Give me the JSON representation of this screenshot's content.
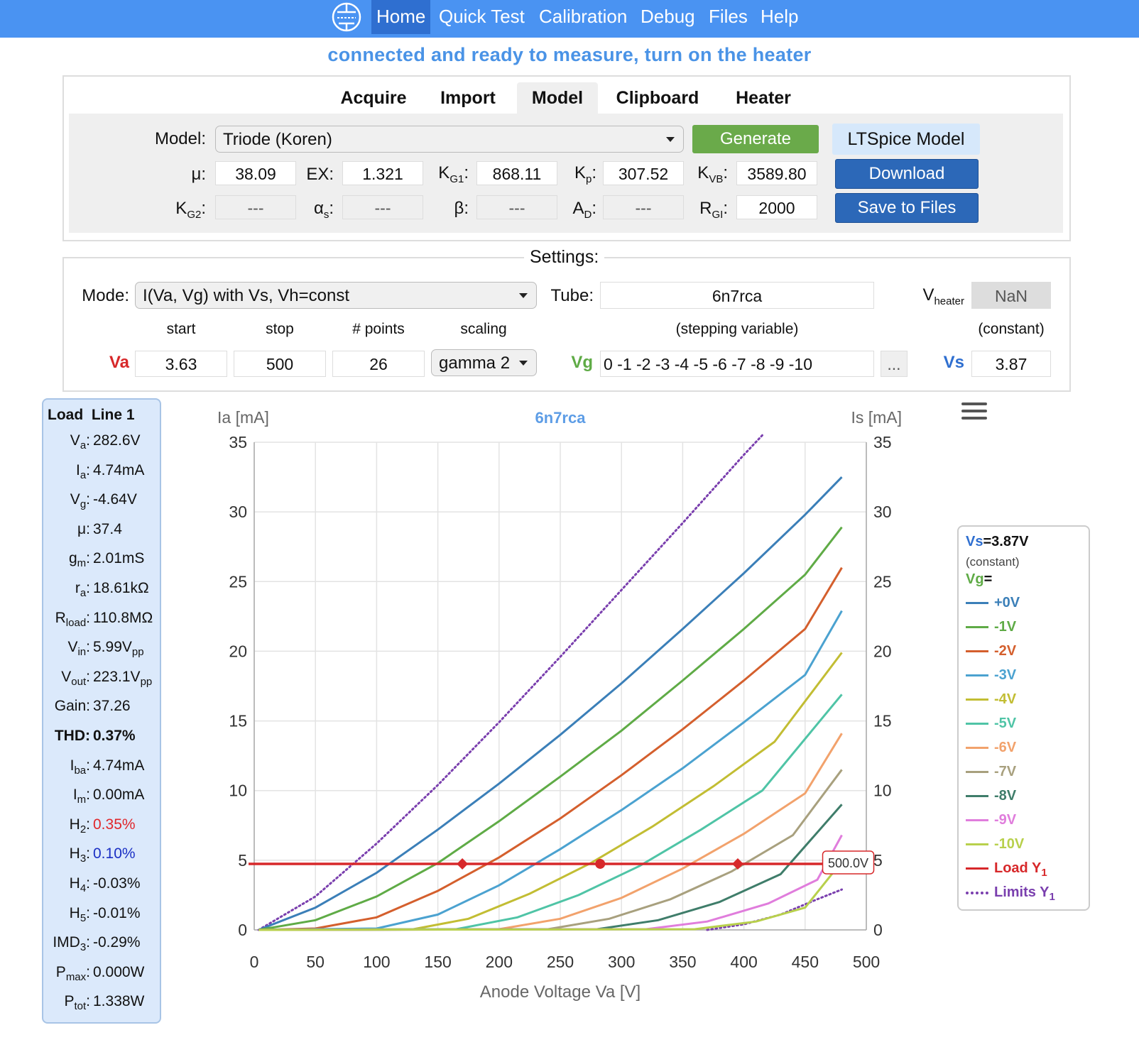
{
  "nav": {
    "items": [
      {
        "label": "Home",
        "active": true
      },
      {
        "label": "Quick Test"
      },
      {
        "label": "Calibration"
      },
      {
        "label": "Debug"
      },
      {
        "label": "Files"
      },
      {
        "label": "Help"
      }
    ]
  },
  "status": "connected and ready to measure, turn on the heater",
  "tabs": [
    "Acquire",
    "Import",
    "Model",
    "Clipboard",
    "Heater"
  ],
  "model": {
    "label": "Model:",
    "selected": "Triode (Koren)",
    "generate": "Generate",
    "ltspice": "LTSpice Model",
    "download": "Download",
    "save": "Save to Files",
    "mu": "38.09",
    "ex": "1.321",
    "kg1": "868.11",
    "kp": "307.52",
    "kvb": "3589.80",
    "kg2": "---",
    "alpha_s": "---",
    "beta": "---",
    "ad": "---",
    "rgi": "2000"
  },
  "settings": {
    "title": "Settings:",
    "mode_label": "Mode:",
    "mode": "I(Va, Vg) with Vs, Vh=const",
    "tube_label": "Tube:",
    "tube": "6n7rca",
    "vheater": "NaN",
    "h_start": "start",
    "h_stop": "stop",
    "h_points": "# points",
    "h_scaling": "scaling",
    "h_stepping": "(stepping variable)",
    "h_constant": "(constant)",
    "va_label": "Va",
    "va_start": "3.63",
    "va_stop": "500",
    "points": "26",
    "scaling": "gamma 2",
    "vg_label": "Vg",
    "vg_values": "0 -1 -2 -3 -4 -5 -6 -7 -8 -9 -10",
    "more": "...",
    "vs_label": "Vs",
    "vs_value": "3.87"
  },
  "loadline": {
    "title": "Load  Line 1",
    "rows": [
      {
        "k": "V",
        "s": "a",
        "v": "282.6V"
      },
      {
        "k": "I",
        "s": "a",
        "v": "4.74mA"
      },
      {
        "k": "V",
        "s": "g",
        "v": "-4.64V"
      },
      {
        "k": "μ",
        "s": "",
        "v": "37.4"
      },
      {
        "k": "g",
        "s": "m",
        "v": "2.01mS"
      },
      {
        "k": "r",
        "s": "a",
        "v": "18.61kΩ"
      },
      {
        "k": "R",
        "s": "load",
        "v": "110.8MΩ"
      },
      {
        "k": "V",
        "s": "in",
        "v": "5.99V",
        "vs": "pp"
      },
      {
        "k": "V",
        "s": "out",
        "v": "223.1V",
        "vs": "pp"
      },
      {
        "k": "Gain",
        "s": "",
        "v": "37.26"
      },
      {
        "k": "THD",
        "s": "",
        "v": "0.37%",
        "bold": true
      },
      {
        "k": "I",
        "s": "ba",
        "v": "4.74mA"
      },
      {
        "k": "I",
        "s": "m",
        "v": "0.00mA"
      },
      {
        "k": "H",
        "s": "2",
        "v": "0.35%",
        "color": "#e0262b"
      },
      {
        "k": "H",
        "s": "3",
        "v": "0.10%",
        "color": "#1a2fc4"
      },
      {
        "k": "H",
        "s": "4",
        "v": "-0.03%"
      },
      {
        "k": "H",
        "s": "5",
        "v": "-0.01%"
      },
      {
        "k": "IMD",
        "s": "3",
        "v": "-0.29%"
      },
      {
        "k": "P",
        "s": "max",
        "v": "0.000W"
      },
      {
        "k": "P",
        "s": "tot",
        "v": "1.338W"
      }
    ]
  },
  "chart_data": {
    "type": "line",
    "title": "6n7rca",
    "xlabel": "Anode Voltage Va [V]",
    "ylabel": "Ia [mA]",
    "y2label": "Is [mA]",
    "xlim": [
      0,
      500
    ],
    "ylim": [
      0,
      35
    ],
    "xticks": [
      0,
      50,
      100,
      150,
      200,
      250,
      300,
      350,
      400,
      450,
      500
    ],
    "yticks": [
      0,
      5,
      10,
      15,
      20,
      25,
      30,
      35
    ],
    "grid": true,
    "legend_position": "right",
    "series": [
      {
        "name": "+0V",
        "color": "#3b7fb8",
        "points": [
          [
            3.6,
            0
          ],
          [
            50,
            1.6
          ],
          [
            100,
            4.1
          ],
          [
            150,
            7.2
          ],
          [
            200,
            10.5
          ],
          [
            250,
            14.0
          ],
          [
            300,
            17.7
          ],
          [
            350,
            21.6
          ],
          [
            400,
            25.6
          ],
          [
            450,
            29.8
          ],
          [
            480,
            32.5
          ]
        ]
      },
      {
        "name": "-1V",
        "color": "#5fab46",
        "points": [
          [
            3.6,
            0
          ],
          [
            50,
            0.7
          ],
          [
            100,
            2.4
          ],
          [
            150,
            4.8
          ],
          [
            200,
            7.8
          ],
          [
            250,
            11.0
          ],
          [
            300,
            14.3
          ],
          [
            350,
            17.9
          ],
          [
            400,
            21.6
          ],
          [
            450,
            25.5
          ],
          [
            480,
            28.9
          ]
        ]
      },
      {
        "name": "-2V",
        "color": "#d45f2d",
        "points": [
          [
            3.6,
            0
          ],
          [
            50,
            0.1
          ],
          [
            100,
            0.9
          ],
          [
            150,
            2.8
          ],
          [
            200,
            5.2
          ],
          [
            250,
            8.0
          ],
          [
            300,
            11.1
          ],
          [
            350,
            14.4
          ],
          [
            400,
            17.9
          ],
          [
            450,
            21.6
          ],
          [
            480,
            26.0
          ]
        ]
      },
      {
        "name": "-3V",
        "color": "#4ba2d0",
        "points": [
          [
            3.6,
            0
          ],
          [
            100,
            0.1
          ],
          [
            150,
            1.1
          ],
          [
            200,
            3.2
          ],
          [
            250,
            5.8
          ],
          [
            300,
            8.6
          ],
          [
            350,
            11.6
          ],
          [
            400,
            14.9
          ],
          [
            450,
            18.3
          ],
          [
            480,
            22.9
          ]
        ]
      },
      {
        "name": "-4V",
        "color": "#c2bd33",
        "points": [
          [
            3.6,
            0
          ],
          [
            130,
            0.05
          ],
          [
            175,
            0.8
          ],
          [
            225,
            2.6
          ],
          [
            275,
            4.8
          ],
          [
            325,
            7.4
          ],
          [
            375,
            10.3
          ],
          [
            425,
            13.5
          ],
          [
            480,
            19.9
          ]
        ]
      },
      {
        "name": "-5V",
        "color": "#4fc4a6",
        "points": [
          [
            3.6,
            0
          ],
          [
            165,
            0.05
          ],
          [
            215,
            0.9
          ],
          [
            265,
            2.5
          ],
          [
            315,
            4.6
          ],
          [
            365,
            7.2
          ],
          [
            415,
            10.0
          ],
          [
            480,
            16.9
          ]
        ]
      },
      {
        "name": "-6V",
        "color": "#f2a26c",
        "points": [
          [
            3.6,
            0
          ],
          [
            200,
            0.05
          ],
          [
            250,
            0.8
          ],
          [
            300,
            2.3
          ],
          [
            350,
            4.4
          ],
          [
            400,
            6.9
          ],
          [
            450,
            9.8
          ],
          [
            480,
            14.1
          ]
        ]
      },
      {
        "name": "-7V",
        "color": "#a8a07e",
        "points": [
          [
            3.6,
            0
          ],
          [
            240,
            0.05
          ],
          [
            290,
            0.8
          ],
          [
            340,
            2.2
          ],
          [
            390,
            4.2
          ],
          [
            440,
            6.8
          ],
          [
            480,
            11.5
          ]
        ]
      },
      {
        "name": "-8V",
        "color": "#3f7d6a",
        "points": [
          [
            3.6,
            0
          ],
          [
            280,
            0.05
          ],
          [
            330,
            0.7
          ],
          [
            380,
            2.0
          ],
          [
            430,
            4.0
          ],
          [
            480,
            9.0
          ]
        ]
      },
      {
        "name": "-9V",
        "color": "#e07ddc",
        "points": [
          [
            3.6,
            0
          ],
          [
            320,
            0.05
          ],
          [
            370,
            0.6
          ],
          [
            420,
            1.9
          ],
          [
            460,
            3.6
          ],
          [
            480,
            6.8
          ]
        ]
      },
      {
        "name": "-10V",
        "color": "#b8d04c",
        "points": [
          [
            3.6,
            0
          ],
          [
            360,
            0.05
          ],
          [
            410,
            0.6
          ],
          [
            450,
            1.6
          ],
          [
            480,
            4.9
          ]
        ]
      }
    ],
    "limits": {
      "name": "Limits Y1",
      "color": "#7a3fae",
      "upper": [
        [
          3.6,
          0
        ],
        [
          50,
          2.4
        ],
        [
          100,
          6.2
        ],
        [
          150,
          10.4
        ],
        [
          200,
          14.9
        ],
        [
          250,
          19.6
        ],
        [
          300,
          24.4
        ],
        [
          350,
          29.2
        ],
        [
          400,
          34.1
        ],
        [
          415,
          35.5
        ]
      ],
      "lower": [
        [
          370,
          0
        ],
        [
          400,
          0.4
        ],
        [
          430,
          1.1
        ],
        [
          460,
          2.2
        ],
        [
          480,
          2.9
        ]
      ]
    },
    "load": {
      "name": "Load Y1",
      "color": "#d7282a",
      "x": [
        0,
        500
      ],
      "y": 4.74,
      "points": [
        170,
        282.6,
        395
      ],
      "label": "500.0V"
    },
    "legend_header": {
      "vs_label": "Vs",
      "vs_value": "=3.87V",
      "constant": "(constant)",
      "vg_label": "Vg",
      "vg_eq": "="
    }
  },
  "colors": {
    "nav": "#4a93f2",
    "accent_blue": "#2f6fd0",
    "generate": "#6aaa4a",
    "download": "#2c68b8",
    "va": "#d7282a",
    "vg": "#5fab46",
    "vs": "#2f6fd0"
  }
}
